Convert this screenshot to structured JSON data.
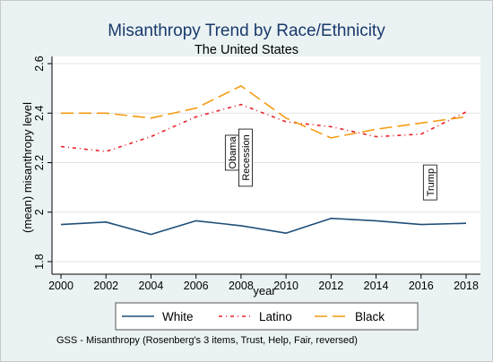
{
  "chart_data": {
    "type": "line",
    "title": "Misanthropy Trend by Race/Ethnicity",
    "subtitle": "The United States",
    "xlabel": "year",
    "ylabel": "(mean) misanthropy level",
    "x": [
      2000,
      2002,
      2004,
      2006,
      2008,
      2010,
      2012,
      2014,
      2016,
      2018
    ],
    "xlim": [
      2000,
      2018
    ],
    "ylim": [
      1.8,
      2.6
    ],
    "xticks": [
      2000,
      2002,
      2004,
      2006,
      2008,
      2010,
      2012,
      2014,
      2016,
      2018
    ],
    "yticks": [
      1.8,
      2,
      2.2,
      2.4,
      2.6
    ],
    "grid": true,
    "legend_position": "bottom",
    "series": [
      {
        "name": "White",
        "color": "#1f4e79",
        "style": "solid",
        "values": [
          1.95,
          1.96,
          1.91,
          1.965,
          1.945,
          1.915,
          1.975,
          1.965,
          1.95,
          1.955
        ]
      },
      {
        "name": "Latino",
        "color": "#e8202a",
        "style": "dash-dot",
        "values": [
          2.265,
          2.245,
          2.305,
          2.385,
          2.435,
          2.365,
          2.345,
          2.305,
          2.315,
          2.405
        ]
      },
      {
        "name": "Black",
        "color": "#f39c12",
        "style": "long-dash",
        "values": [
          2.4,
          2.4,
          2.38,
          2.42,
          2.51,
          2.38,
          2.3,
          2.335,
          2.36,
          2.385
        ]
      }
    ],
    "annotations": [
      {
        "text": "Obama",
        "x": 2007.6,
        "y": 2.24
      },
      {
        "text": "Recession",
        "x": 2008.2,
        "y": 2.22
      },
      {
        "text": "Trump",
        "x": 2016.4,
        "y": 2.12
      }
    ],
    "note": "GSS - Misanthropy (Rosenberg's 3 items, Trust, Help, Fair, reversed)"
  }
}
